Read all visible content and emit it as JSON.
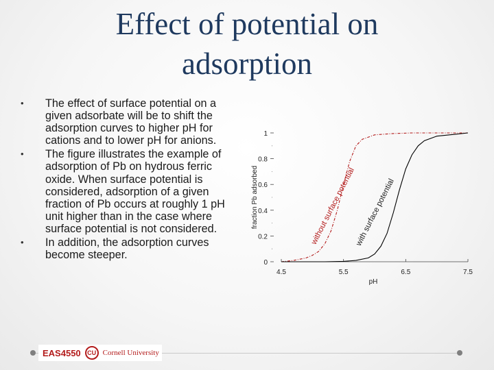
{
  "title": "Effect of potential on adsorption",
  "bullets": [
    "The effect of surface potential on a given adsorbate will be to shift the adsorption curves to higher pH for cations and to lower pH for anions.",
    "The figure illustrates the example of adsorption of Pb on hydrous ferric oxide. When surface potential is considered, adsorption of a given fraction of Pb occurs at roughly 1 pH unit higher than in the case where surface potential is not considered.",
    "In addition, the adsorption curves become steeper."
  ],
  "bullet_symbol": "•",
  "footer": {
    "course": "EAS4550",
    "seal_letters": "CU",
    "university": "Cornell University"
  },
  "colors": {
    "title": "#1f3a5f",
    "with_potential": "#000000",
    "without_potential": "#b31b1b",
    "footer_brand": "#b31b1b"
  },
  "chart_data": {
    "type": "line",
    "xlabel": "pH",
    "ylabel": "fraction Pb adsorbed",
    "xlim": [
      4.5,
      7.5
    ],
    "ylim": [
      0,
      1
    ],
    "x_ticks": [
      "4.5",
      "5.5",
      "6.5",
      "7.5"
    ],
    "y_ticks": [
      "0",
      "0.2",
      "0.4",
      "0.6",
      "0.8",
      "1"
    ],
    "series": [
      {
        "name": "without surface potential",
        "style": "dashed",
        "color": "#b31b1b",
        "x": [
          4.5,
          4.7,
          4.9,
          5.0,
          5.1,
          5.2,
          5.3,
          5.4,
          5.5,
          5.6,
          5.7,
          5.8,
          6.0,
          6.3,
          6.6,
          7.0,
          7.5
        ],
        "y": [
          0.0,
          0.01,
          0.03,
          0.05,
          0.08,
          0.14,
          0.24,
          0.4,
          0.6,
          0.78,
          0.9,
          0.95,
          0.985,
          0.995,
          1.0,
          1.0,
          1.0
        ]
      },
      {
        "name": "with surface potential",
        "style": "solid",
        "color": "#000000",
        "x": [
          4.5,
          5.2,
          5.5,
          5.7,
          5.9,
          6.0,
          6.1,
          6.2,
          6.3,
          6.4,
          6.5,
          6.6,
          6.7,
          6.8,
          7.0,
          7.3,
          7.5
        ],
        "y": [
          0.0,
          0.0,
          0.003,
          0.01,
          0.03,
          0.06,
          0.12,
          0.22,
          0.38,
          0.56,
          0.72,
          0.83,
          0.9,
          0.94,
          0.975,
          0.99,
          1.0
        ]
      }
    ],
    "annotations": [
      "without surface potential",
      "with surface potential"
    ]
  }
}
